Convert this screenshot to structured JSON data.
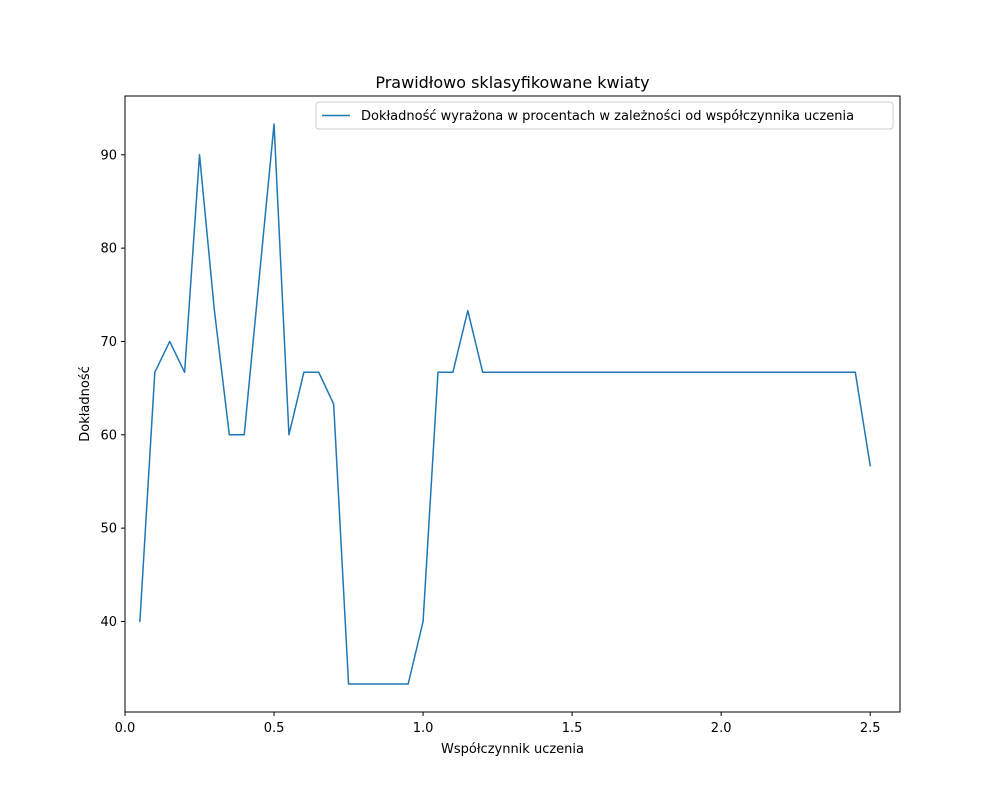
{
  "chart_data": {
    "type": "line",
    "title": "Prawidłowo sklasyfikowane kwiaty",
    "xlabel": "Współczynnik uczenia",
    "ylabel": "Dokładność",
    "xlim": [
      0,
      2.6
    ],
    "ylim": [
      30.3,
      96.3
    ],
    "x_ticks": [
      0,
      0.5,
      1,
      1.5,
      2,
      2.5
    ],
    "x_tick_labels": [
      "0.0",
      "0.5",
      "1.0",
      "1.5",
      "2.0",
      "2.5"
    ],
    "y_ticks": [
      40,
      50,
      60,
      70,
      80,
      90
    ],
    "y_tick_labels": [
      "40",
      "50",
      "60",
      "70",
      "80",
      "90"
    ],
    "grid": false,
    "legend_position": "top-right",
    "series": [
      {
        "name": "Dokładność wyrażona w procentach w zależności od współczynnika uczenia",
        "color": "#1f77b4",
        "x": [
          0.05,
          0.1,
          0.15,
          0.2,
          0.25,
          0.3,
          0.35,
          0.4,
          0.45,
          0.5,
          0.55,
          0.6,
          0.65,
          0.7,
          0.75,
          0.8,
          0.85,
          0.9,
          0.95,
          1.0,
          1.05,
          1.1,
          1.15,
          1.2,
          1.25,
          1.3,
          1.35,
          1.4,
          1.45,
          1.5,
          1.55,
          1.6,
          1.65,
          1.7,
          1.75,
          1.8,
          1.85,
          1.9,
          1.95,
          2.0,
          2.05,
          2.1,
          2.15,
          2.2,
          2.25,
          2.3,
          2.35,
          2.4,
          2.45,
          2.5
        ],
        "y": [
          40,
          66.7,
          70,
          66.7,
          90,
          73.3,
          60,
          60,
          76.7,
          93.3,
          60,
          66.7,
          66.7,
          63.3,
          33.3,
          33.3,
          33.3,
          33.3,
          33.3,
          40,
          66.7,
          66.7,
          73.3,
          66.7,
          66.7,
          66.7,
          66.7,
          66.7,
          66.7,
          66.7,
          66.7,
          66.7,
          66.7,
          66.7,
          66.7,
          66.7,
          66.7,
          66.7,
          66.7,
          66.7,
          66.7,
          66.7,
          66.7,
          66.7,
          66.7,
          66.7,
          66.7,
          66.7,
          66.7,
          56.7
        ]
      }
    ]
  }
}
